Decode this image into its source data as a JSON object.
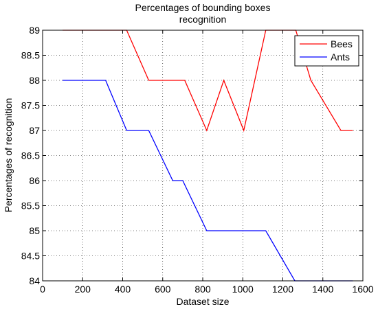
{
  "chart_data": {
    "type": "line",
    "title_lines": [
      "Percentages of bounding boxes",
      "recognition"
    ],
    "xlabel": "Dataset size",
    "ylabel": "Percentages of recognition",
    "xlim": [
      0,
      1600
    ],
    "ylim": [
      84,
      89
    ],
    "xticks": [
      0,
      200,
      400,
      600,
      800,
      1000,
      1200,
      1400,
      1600
    ],
    "yticks": [
      84,
      84.5,
      85,
      85.5,
      86,
      86.5,
      87,
      87.5,
      88,
      88.5,
      89
    ],
    "grid": true,
    "legend_position": "top-right",
    "series": [
      {
        "name": "Bees",
        "color": "#ff0000",
        "points": [
          [
            100,
            89
          ],
          [
            420,
            89
          ],
          [
            530,
            88
          ],
          [
            710,
            88
          ],
          [
            820,
            87
          ],
          [
            905,
            88
          ],
          [
            1005,
            87
          ],
          [
            1115,
            89
          ],
          [
            1265,
            89
          ],
          [
            1340,
            88
          ],
          [
            1490,
            87
          ],
          [
            1550,
            87
          ]
        ]
      },
      {
        "name": "Ants",
        "color": "#0000ff",
        "points": [
          [
            100,
            88
          ],
          [
            315,
            88
          ],
          [
            420,
            87
          ],
          [
            530,
            87
          ],
          [
            650,
            86
          ],
          [
            700,
            86
          ],
          [
            820,
            85
          ],
          [
            1115,
            85
          ],
          [
            1260,
            84
          ],
          [
            1550,
            84
          ]
        ]
      }
    ]
  }
}
